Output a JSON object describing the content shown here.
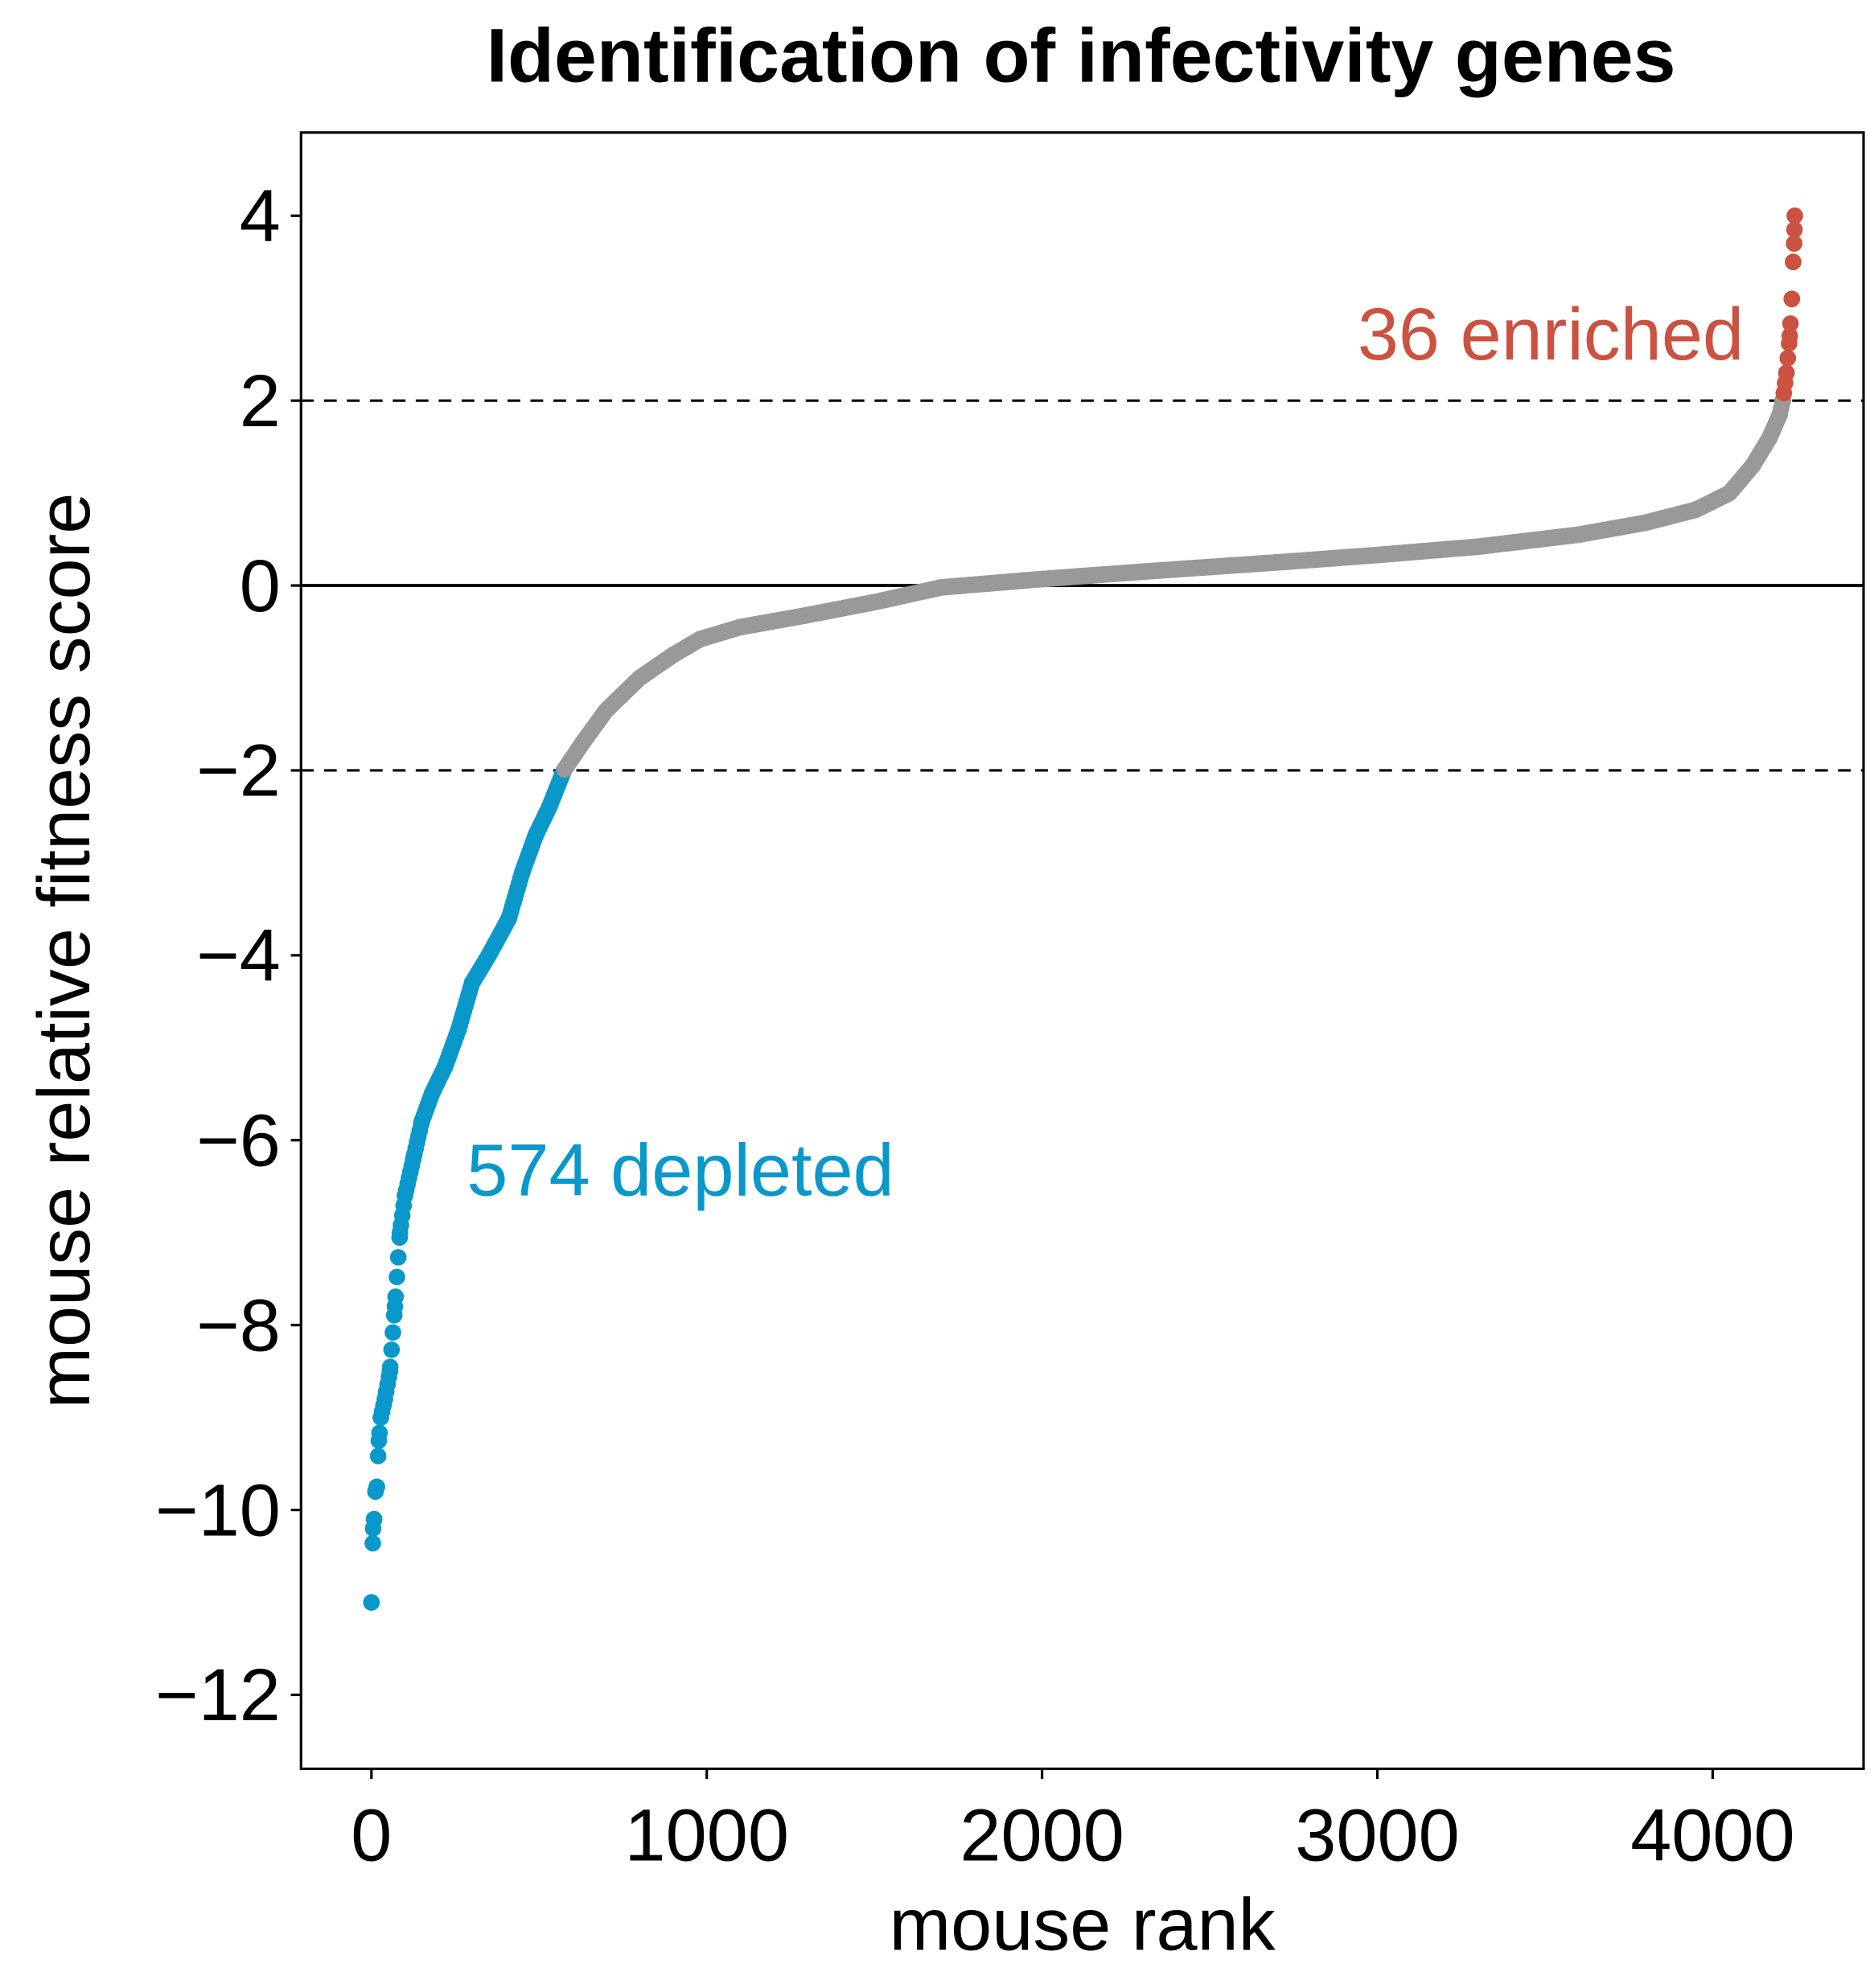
{
  "chart_data": {
    "type": "scatter",
    "title": "Identification of infectivity genes",
    "xlabel": "mouse rank",
    "ylabel": "mouse relative fitness score",
    "xlim": [
      -210,
      4450
    ],
    "ylim": [
      -12.8,
      4.9
    ],
    "xticks": [
      0,
      1000,
      2000,
      3000,
      4000
    ],
    "xtick_labels": [
      "0",
      "1000",
      "2000",
      "3000",
      "4000"
    ],
    "yticks": [
      4,
      2,
      0,
      -2,
      -4,
      -6,
      -8,
      -10,
      -12
    ],
    "ytick_labels": [
      "4",
      "2",
      "0",
      "−2",
      "−4",
      "−6",
      "−8",
      "−10",
      "−12"
    ],
    "total_genes": 4245,
    "thresholds": [
      2,
      -2
    ],
    "zero_line": 0,
    "colors": {
      "depleted": "#0a98cb",
      "enriched": "#cb5140",
      "neutral": "#999999"
    },
    "annotations": {
      "enriched": "36 enriched",
      "depleted": "574 depleted"
    },
    "series_points": [
      [
        0,
        -11.0
      ],
      [
        5,
        -10.2
      ],
      [
        8,
        -10.1
      ],
      [
        12,
        -9.8
      ],
      [
        16,
        -9.75
      ],
      [
        22,
        -9.25
      ],
      [
        28,
        -9.0
      ],
      [
        40,
        -8.8
      ],
      [
        55,
        -8.5
      ],
      [
        70,
        -7.8
      ],
      [
        85,
        -7.0
      ],
      [
        100,
        -6.6
      ],
      [
        125,
        -6.2
      ],
      [
        150,
        -5.8
      ],
      [
        180,
        -5.5
      ],
      [
        220,
        -5.2
      ],
      [
        260,
        -4.8
      ],
      [
        300,
        -4.3
      ],
      [
        350,
        -4.0
      ],
      [
        410,
        -3.6
      ],
      [
        450,
        -3.1
      ],
      [
        490,
        -2.7
      ],
      [
        530,
        -2.4
      ],
      [
        574,
        -2.0
      ],
      [
        630,
        -1.7
      ],
      [
        700,
        -1.35
      ],
      [
        800,
        -1.0
      ],
      [
        900,
        -0.75
      ],
      [
        980,
        -0.58
      ],
      [
        1100,
        -0.45
      ],
      [
        1300,
        -0.32
      ],
      [
        1500,
        -0.18
      ],
      [
        1700,
        -0.02
      ],
      [
        2000,
        0.07
      ],
      [
        2300,
        0.15
      ],
      [
        2700,
        0.25
      ],
      [
        3000,
        0.33
      ],
      [
        3300,
        0.42
      ],
      [
        3600,
        0.55
      ],
      [
        3800,
        0.68
      ],
      [
        3950,
        0.82
      ],
      [
        4050,
        1.0
      ],
      [
        4120,
        1.3
      ],
      [
        4170,
        1.6
      ],
      [
        4200,
        1.85
      ],
      [
        4209,
        2.0
      ],
      [
        4220,
        2.3
      ],
      [
        4230,
        2.7
      ],
      [
        4236,
        3.1
      ],
      [
        4240,
        3.5
      ],
      [
        4243,
        3.7
      ],
      [
        4245,
        4.0
      ]
    ]
  }
}
